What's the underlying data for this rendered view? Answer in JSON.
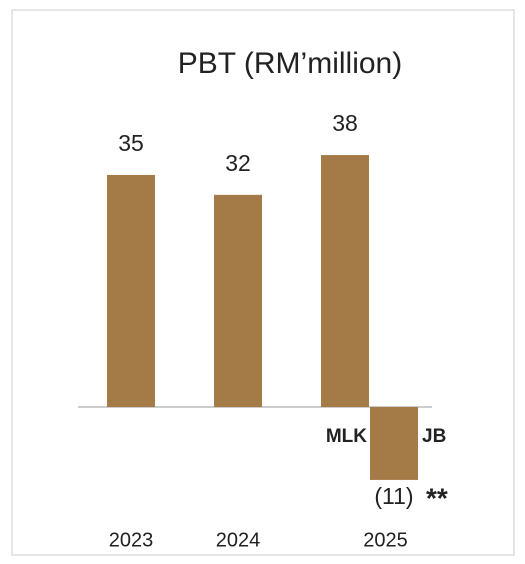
{
  "chart_data": {
    "type": "bar",
    "title": "PBT (RM’million)",
    "categories": [
      "2023",
      "2024",
      "2025"
    ],
    "series": [
      {
        "name": "MLK",
        "color": "#a47a47",
        "values": [
          35,
          32,
          38
        ]
      },
      {
        "name": "JB",
        "color": "#a47a47",
        "values": [
          null,
          null,
          -11
        ],
        "value_labels": [
          null,
          null,
          "(11)"
        ]
      }
    ],
    "annotation": "**"
  }
}
